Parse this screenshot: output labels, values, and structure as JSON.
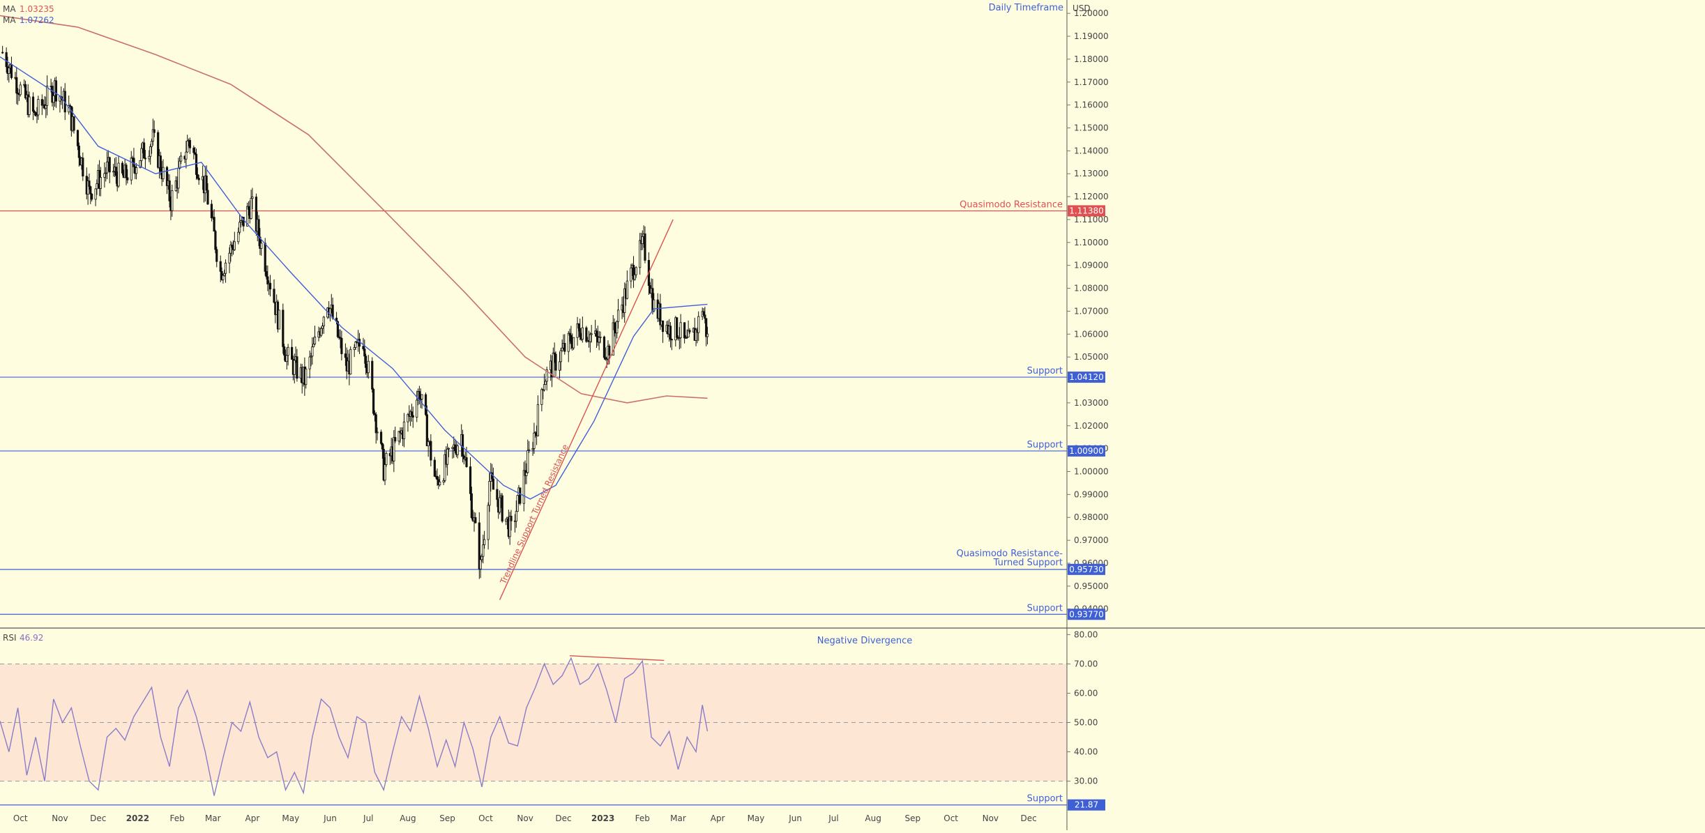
{
  "header": {
    "ma1_label": "MA",
    "ma1_value": "1.03235",
    "ma1_color": "#e05050",
    "ma2_label": "MA",
    "ma2_value": "1.07262",
    "ma2_color": "#3f5fd6",
    "timeframe": "Daily Timeframe",
    "currency": "USD"
  },
  "rsi_header": {
    "label": "RSI",
    "value": "46.92",
    "color": "#8a6cc8"
  },
  "colors": {
    "background": "#fffde0",
    "support": "#3f5fd6",
    "resistance": "#e05050",
    "ma200": "#c9706a",
    "ma50": "#3f5fd6",
    "rsi_line": "#8a7cc8",
    "rsi_band": "#fde6d4",
    "candle": "#111111"
  },
  "chart_data": [
    {
      "type": "candlestick",
      "y_ticks": [
        "1.20000",
        "1.19000",
        "1.18000",
        "1.17000",
        "1.16000",
        "1.15000",
        "1.14000",
        "1.13000",
        "1.12000",
        "1.11000",
        "1.10000",
        "1.09000",
        "1.08000",
        "1.07000",
        "1.06000",
        "1.05000",
        "1.03000",
        "1.02000",
        "1.01000",
        "1.00000",
        "0.99000",
        "0.98000",
        "0.97000",
        "0.96000",
        "0.95000",
        "0.94000"
      ],
      "x_ticks": [
        "Oct",
        "Nov",
        "Dec",
        "2022",
        "Feb",
        "Mar",
        "Apr",
        "May",
        "Jun",
        "Jul",
        "Aug",
        "Sep",
        "Oct",
        "Nov",
        "Dec",
        "2023",
        "Feb",
        "Mar",
        "Apr",
        "May",
        "Jun",
        "Jul",
        "Aug",
        "Sep",
        "Oct",
        "Nov",
        "Dec"
      ],
      "ylim": [
        0.932,
        1.204
      ],
      "x_range": [
        "2021-09-15",
        "2023-12-31"
      ],
      "price_path": [
        [
          "2021-09-17",
          1.183
        ],
        [
          "2021-09-29",
          1.169
        ],
        [
          "2021-10-12",
          1.155
        ],
        [
          "2021-10-28",
          1.168
        ],
        [
          "2021-11-08",
          1.158
        ],
        [
          "2021-11-24",
          1.122
        ],
        [
          "2021-12-08",
          1.132
        ],
        [
          "2021-12-21",
          1.128
        ],
        [
          "2022-01-13",
          1.145
        ],
        [
          "2022-01-27",
          1.118
        ],
        [
          "2022-02-10",
          1.145
        ],
        [
          "2022-02-24",
          1.122
        ],
        [
          "2022-03-07",
          1.087
        ],
        [
          "2022-03-31",
          1.117
        ],
        [
          "2022-04-14",
          1.085
        ],
        [
          "2022-04-28",
          1.05
        ],
        [
          "2022-05-12",
          1.04
        ],
        [
          "2022-05-30",
          1.075
        ],
        [
          "2022-06-14",
          1.045
        ],
        [
          "2022-06-27",
          1.058
        ],
        [
          "2022-07-13",
          1.001
        ],
        [
          "2022-08-02",
          1.024
        ],
        [
          "2022-08-10",
          1.035
        ],
        [
          "2022-08-23",
          0.995
        ],
        [
          "2022-09-12",
          1.016
        ],
        [
          "2022-09-27",
          0.958
        ],
        [
          "2022-10-04",
          0.996
        ],
        [
          "2022-10-21",
          0.974
        ],
        [
          "2022-11-10",
          1.021
        ],
        [
          "2022-11-15",
          1.04
        ],
        [
          "2022-12-01",
          1.053
        ],
        [
          "2022-12-15",
          1.063
        ],
        [
          "2023-01-05",
          1.053
        ],
        [
          "2023-01-26",
          1.091
        ],
        [
          "2023-02-02",
          1.099
        ],
        [
          "2023-02-10",
          1.072
        ],
        [
          "2023-02-22",
          1.062
        ],
        [
          "2023-03-01",
          1.062
        ],
        [
          "2023-03-07",
          1.055
        ],
        [
          "2023-03-15",
          1.061
        ],
        [
          "2023-03-20",
          1.072
        ],
        [
          "2023-03-24",
          1.058
        ]
      ],
      "series": [
        {
          "values": [
            [
              "2021-09-15",
              1.181
            ],
            [
              "2021-11-01",
              1.164
            ],
            [
              "2021-12-01",
              1.142
            ],
            [
              "2022-01-15",
              1.13
            ],
            [
              "2022-02-20",
              1.135
            ],
            [
              "2022-03-25",
              1.11
            ],
            [
              "2022-05-01",
              1.087
            ],
            [
              "2022-06-10",
              1.063
            ],
            [
              "2022-07-20",
              1.045
            ],
            [
              "2022-08-30",
              1.018
            ],
            [
              "2022-10-15",
              0.994
            ],
            [
              "2022-11-05",
              0.988
            ],
            [
              "2022-11-25",
              0.994
            ],
            [
              "2022-12-25",
              1.022
            ],
            [
              "2023-01-25",
              1.059
            ],
            [
              "2023-02-10",
              1.071
            ],
            [
              "2023-03-24",
              1.073
            ]
          ]
        },
        {
          "values": [
            [
              "2021-09-15",
              1.199
            ],
            [
              "2021-11-15",
              1.194
            ],
            [
              "2022-01-15",
              1.182
            ],
            [
              "2022-03-15",
              1.169
            ],
            [
              "2022-05-15",
              1.147
            ],
            [
              "2022-07-15",
              1.113
            ],
            [
              "2022-09-15",
              1.078
            ],
            [
              "2022-11-01",
              1.05
            ],
            [
              "2022-12-15",
              1.034
            ],
            [
              "2023-01-20",
              1.03
            ],
            [
              "2023-02-20",
              1.033
            ],
            [
              "2023-03-24",
              1.032
            ]
          ]
        }
      ],
      "levels": [
        {
          "value": 1.1138,
          "label": "Quasimodo Resistance",
          "tag": "1.11380",
          "kind": "resistance"
        },
        {
          "value": 1.0412,
          "label": "Support",
          "tag": "1.04120",
          "kind": "support"
        },
        {
          "value": 1.009,
          "label": "Support",
          "tag": "1.00900",
          "kind": "support"
        },
        {
          "value": 0.9573,
          "label_line1": "Quasimodo Resistance-",
          "label_line2": "Turned Support",
          "tag": "0.95730",
          "kind": "support"
        },
        {
          "value": 0.9377,
          "label": "Support",
          "tag": "0.93770",
          "kind": "support"
        }
      ],
      "trendline": {
        "from": [
          "2022-10-12",
          0.944
        ],
        "to": [
          "2023-02-25",
          1.11
        ],
        "label": "Trendline Support Turned Resistance"
      }
    },
    {
      "type": "line",
      "ylim": [
        23,
        82
      ],
      "y_ticks": [
        "80.00",
        "70.00",
        "60.00",
        "50.00",
        "40.00",
        "30.00"
      ],
      "series": [
        {
          "values": [
            [
              "2021-09-15",
              50.5
            ],
            [
              "2021-09-22",
              40
            ],
            [
              "2021-09-29",
              55
            ],
            [
              "2021-10-06",
              32
            ],
            [
              "2021-10-13",
              45
            ],
            [
              "2021-10-20",
              30
            ],
            [
              "2021-10-27",
              58
            ],
            [
              "2021-11-03",
              50
            ],
            [
              "2021-11-10",
              55
            ],
            [
              "2021-11-17",
              42
            ],
            [
              "2021-11-24",
              30
            ],
            [
              "2021-12-01",
              27
            ],
            [
              "2021-12-08",
              45
            ],
            [
              "2021-12-15",
              48
            ],
            [
              "2021-12-22",
              44
            ],
            [
              "2021-12-29",
              52
            ],
            [
              "2022-01-05",
              57
            ],
            [
              "2022-01-12",
              62
            ],
            [
              "2022-01-19",
              45
            ],
            [
              "2022-01-26",
              35
            ],
            [
              "2022-02-02",
              55
            ],
            [
              "2022-02-09",
              61
            ],
            [
              "2022-02-16",
              52
            ],
            [
              "2022-02-23",
              40
            ],
            [
              "2022-03-02",
              25
            ],
            [
              "2022-03-09",
              38
            ],
            [
              "2022-03-16",
              50
            ],
            [
              "2022-03-23",
              47
            ],
            [
              "2022-03-30",
              57
            ],
            [
              "2022-04-06",
              45
            ],
            [
              "2022-04-13",
              38
            ],
            [
              "2022-04-20",
              40
            ],
            [
              "2022-04-27",
              27
            ],
            [
              "2022-05-04",
              33
            ],
            [
              "2022-05-11",
              26
            ],
            [
              "2022-05-18",
              45
            ],
            [
              "2022-05-25",
              58
            ],
            [
              "2022-06-01",
              55
            ],
            [
              "2022-06-08",
              45
            ],
            [
              "2022-06-15",
              38
            ],
            [
              "2022-06-22",
              52
            ],
            [
              "2022-06-29",
              50
            ],
            [
              "2022-07-06",
              33
            ],
            [
              "2022-07-13",
              27
            ],
            [
              "2022-07-20",
              40
            ],
            [
              "2022-07-27",
              52
            ],
            [
              "2022-08-03",
              47
            ],
            [
              "2022-08-10",
              59
            ],
            [
              "2022-08-17",
              48
            ],
            [
              "2022-08-24",
              35
            ],
            [
              "2022-08-31",
              44
            ],
            [
              "2022-09-07",
              35
            ],
            [
              "2022-09-14",
              50
            ],
            [
              "2022-09-21",
              41
            ],
            [
              "2022-09-28",
              28
            ],
            [
              "2022-10-05",
              45
            ],
            [
              "2022-10-12",
              52
            ],
            [
              "2022-10-19",
              43
            ],
            [
              "2022-10-26",
              42
            ],
            [
              "2022-11-02",
              55
            ],
            [
              "2022-11-09",
              62
            ],
            [
              "2022-11-16",
              70
            ],
            [
              "2022-11-23",
              63
            ],
            [
              "2022-11-30",
              66
            ],
            [
              "2022-12-07",
              72
            ],
            [
              "2022-12-14",
              63
            ],
            [
              "2022-12-21",
              65
            ],
            [
              "2022-12-28",
              70
            ],
            [
              "2023-01-04",
              61
            ],
            [
              "2023-01-11",
              50
            ],
            [
              "2023-01-18",
              65
            ],
            [
              "2023-01-25",
              67
            ],
            [
              "2023-02-01",
              71
            ],
            [
              "2023-02-08",
              45
            ],
            [
              "2023-02-15",
              42
            ],
            [
              "2023-02-22",
              47
            ],
            [
              "2023-03-01",
              34
            ],
            [
              "2023-03-08",
              45
            ],
            [
              "2023-03-15",
              40
            ],
            [
              "2023-03-20",
              56
            ],
            [
              "2023-03-24",
              47
            ]
          ]
        }
      ],
      "divergence": {
        "label": "Negative Divergence",
        "from": [
          "2022-12-06",
          72.8
        ],
        "to": [
          "2023-02-18",
          71.2
        ]
      },
      "support": {
        "value": 21.87,
        "label": "Support",
        "tag": "21.87"
      }
    }
  ]
}
